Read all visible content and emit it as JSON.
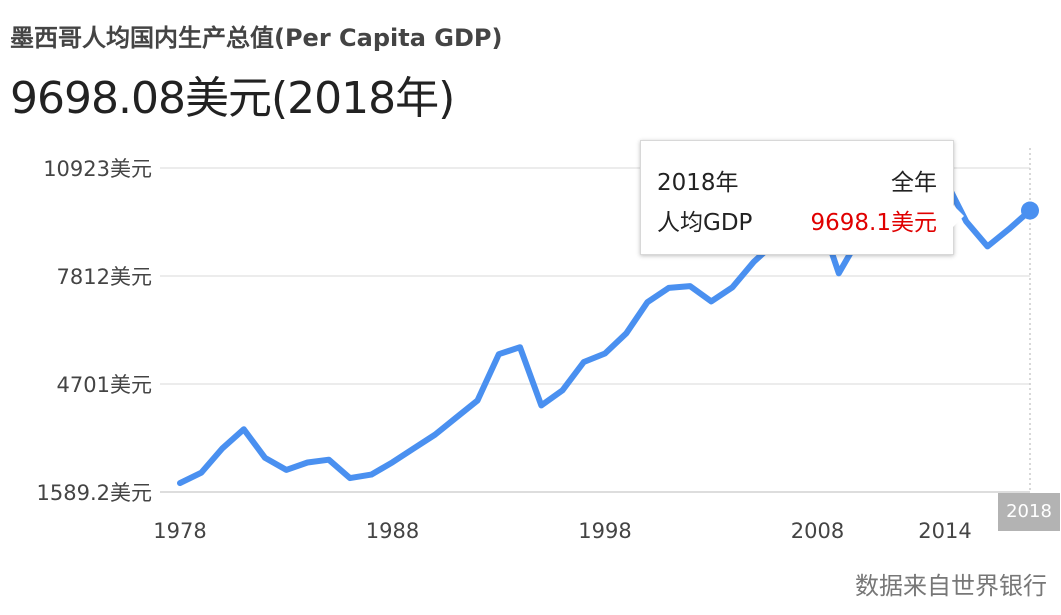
{
  "header": {
    "subtitle": "墨西哥人均国内生产总值(Per Capita GDP)",
    "headline": "9698.08美元(2018年)"
  },
  "tooltip": {
    "year": "2018年",
    "period": "全年",
    "label": "人均GDP",
    "value": "9698.1美元"
  },
  "x_badge": "2018",
  "source": "数据来自世界银行",
  "colors": {
    "line": "#4a90f0",
    "tooltip_value": "#e00000",
    "badge": "#b3b3b3"
  },
  "chart_data": {
    "type": "line",
    "title": "墨西哥人均国内生产总值(Per Capita GDP)",
    "ylim": [
      1589.2,
      10923
    ],
    "y_ticks": [
      {
        "value": 1589.2,
        "label": "1589.2美元"
      },
      {
        "value": 4701,
        "label": "4701美元"
      },
      {
        "value": 7812,
        "label": "7812美元"
      },
      {
        "value": 10923,
        "label": "10923美元"
      }
    ],
    "xlim": [
      1978,
      2018
    ],
    "x_ticks": [
      {
        "value": 1978,
        "label": "1978"
      },
      {
        "value": 1988,
        "label": "1988"
      },
      {
        "value": 1998,
        "label": "1998"
      },
      {
        "value": 2008,
        "label": "2008"
      },
      {
        "value": 2014,
        "label": "2014"
      }
    ],
    "grid": true,
    "series": [
      {
        "x": [
          1978,
          1979,
          1980,
          1981,
          1982,
          1983,
          1984,
          1985,
          1986,
          1987,
          1988,
          1989,
          1990,
          1991,
          1992,
          1993,
          1994,
          1995,
          1996,
          1997,
          1998,
          1999,
          2000,
          2001,
          2002,
          2003,
          2004,
          2005,
          2006,
          2007,
          2008,
          2009,
          2010,
          2011,
          2012,
          2013,
          2014,
          2015,
          2016,
          2017,
          2018
        ],
        "values": [
          1845,
          2145,
          2850,
          3395,
          2575,
          2225,
          2440,
          2520,
          1990,
          2090,
          2445,
          2845,
          3240,
          3735,
          4225,
          5560,
          5760,
          4085,
          4520,
          5335,
          5580,
          6160,
          7060,
          7470,
          7520,
          7080,
          7490,
          8220,
          8780,
          9150,
          9700,
          7890,
          8950,
          9480,
          9890,
          10280,
          10590,
          9380,
          8665,
          9160,
          9698.08
        ],
        "highlight_index": 40
      }
    ]
  }
}
